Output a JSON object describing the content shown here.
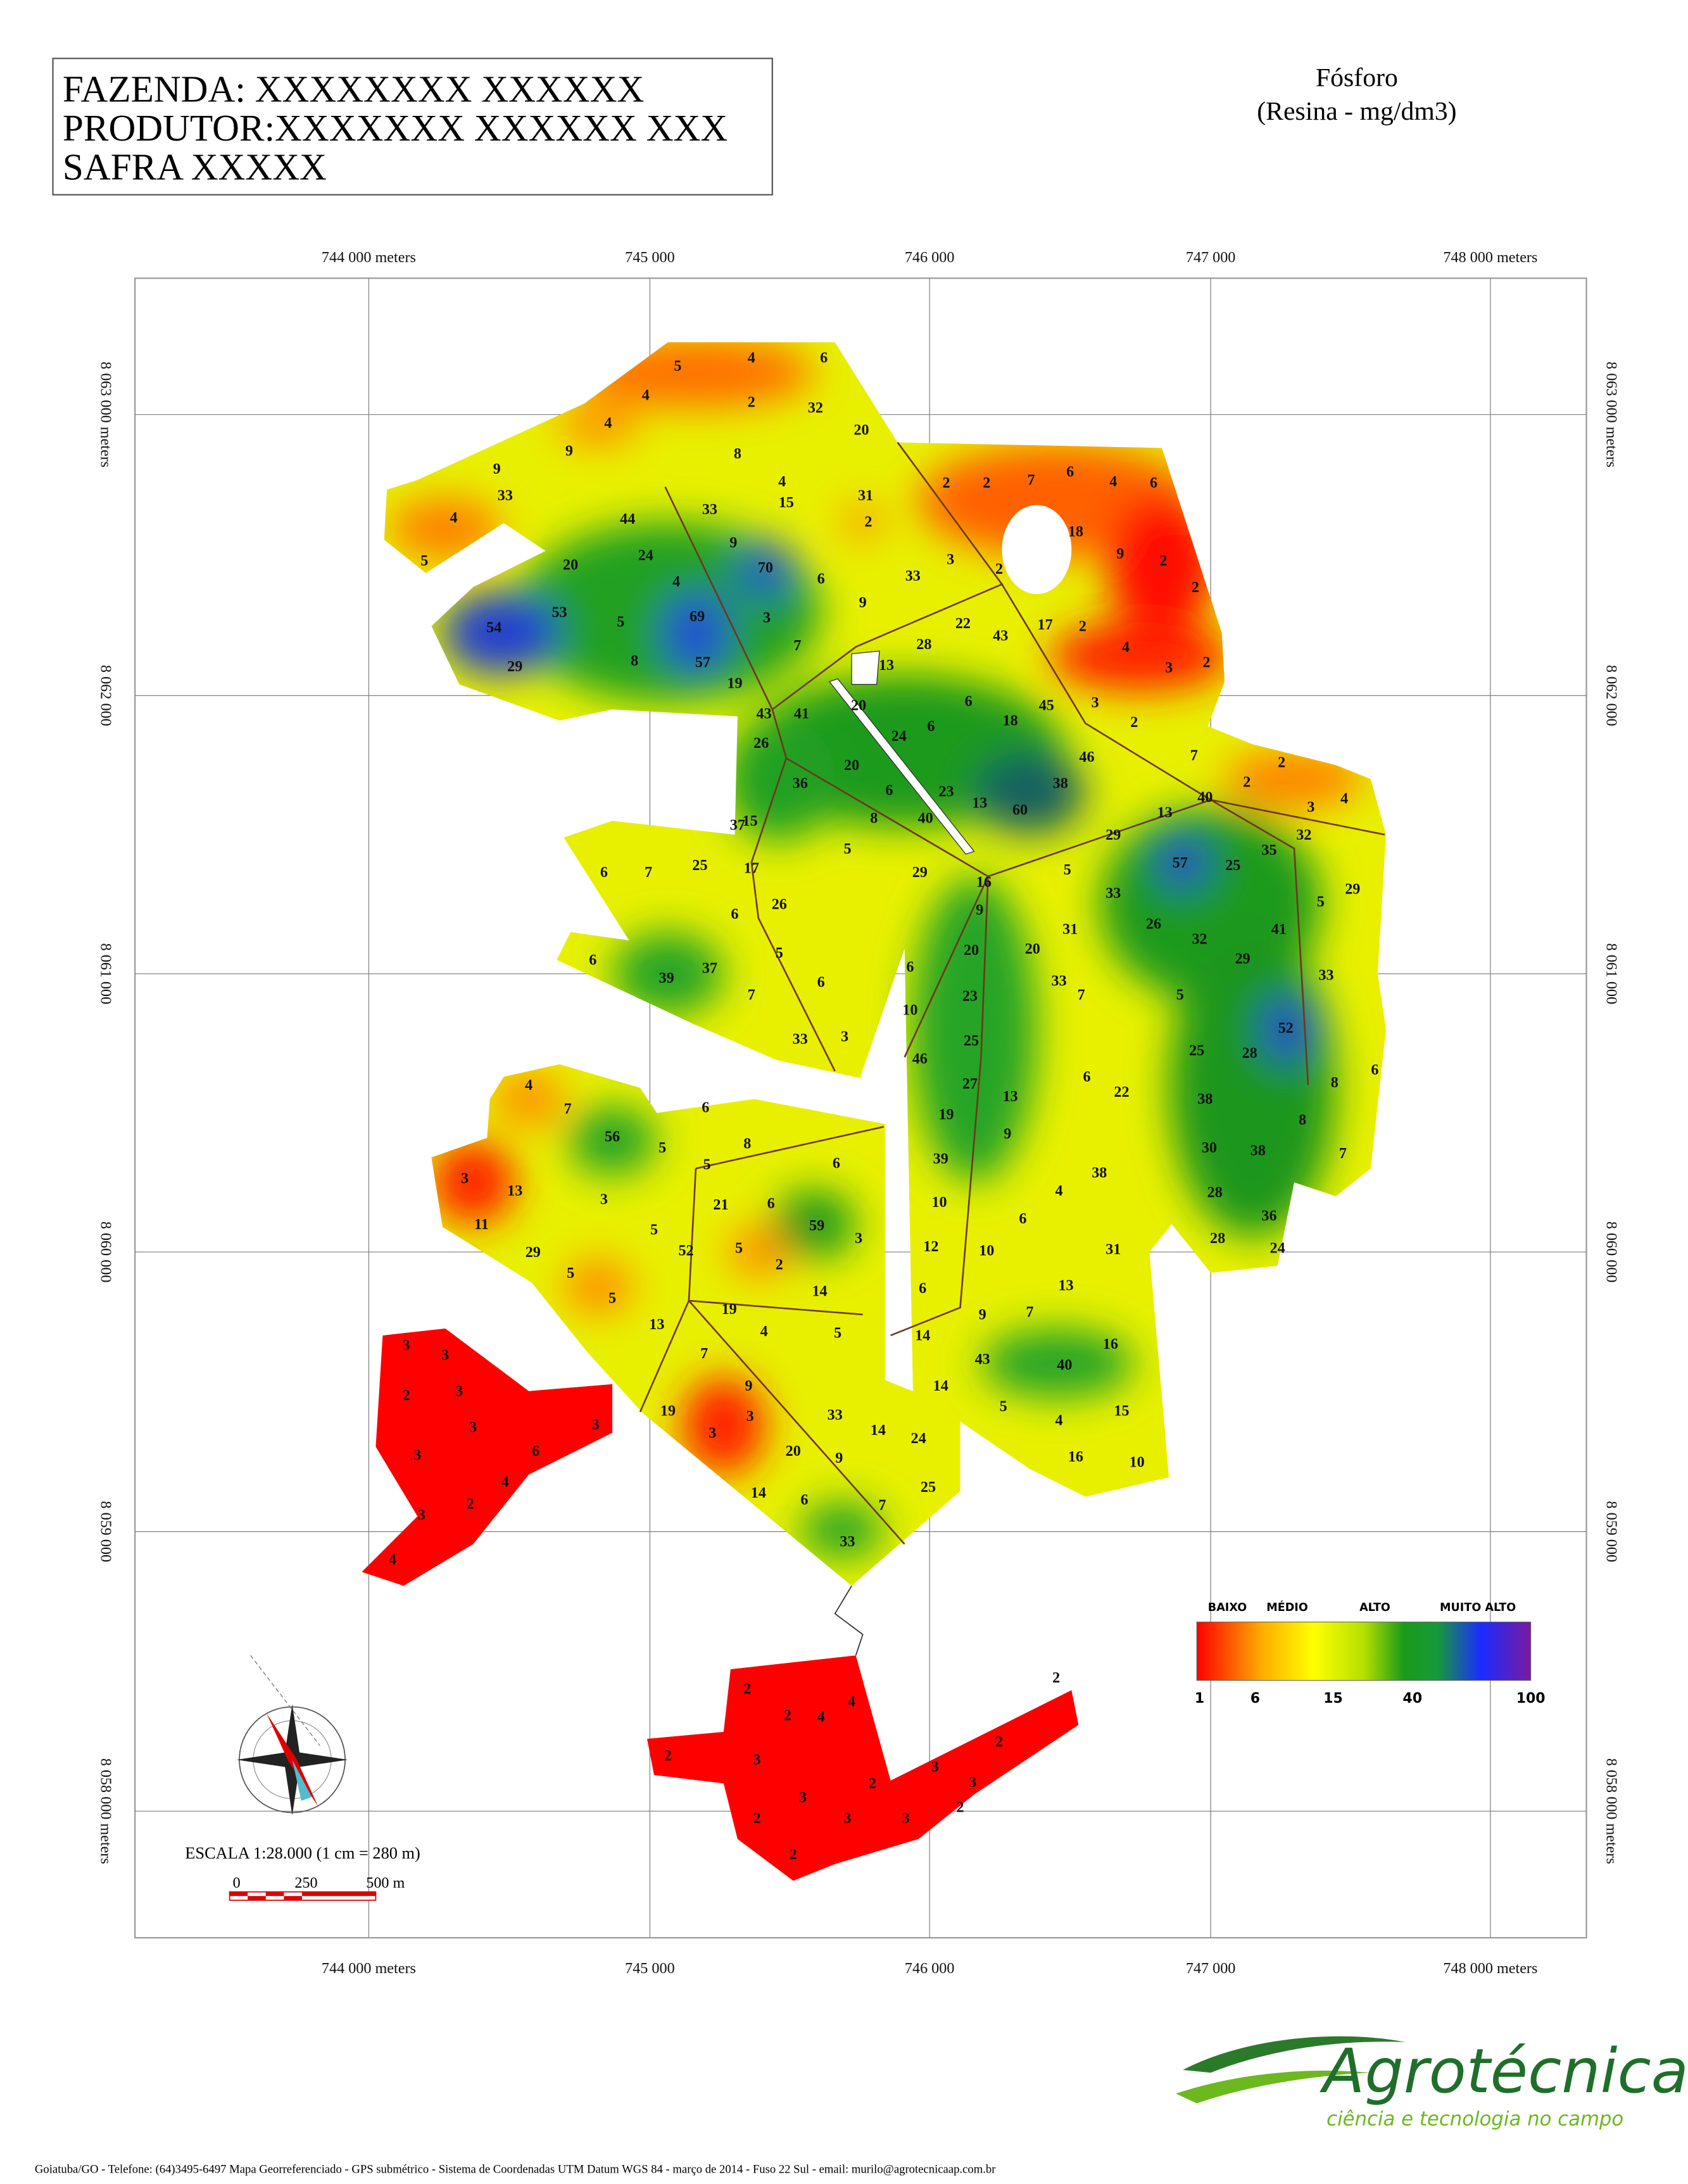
{
  "header": {
    "lines": [
      "FAZENDA: XXXXXXXX XXXXXX",
      "PRODUTOR:XXXXXXX XXXXXX XXX",
      "SAFRA XXXXX"
    ]
  },
  "title": {
    "line1": "Fósforo",
    "line2": "(Resina - mg/dm3)"
  },
  "grid": {
    "top_labels": [
      "744 000 meters",
      "745 000",
      "746 000",
      "747 000",
      "748 000 meters"
    ],
    "bottom_labels": [
      "744 000 meters",
      "745 000",
      "746 000",
      "747 000",
      "748 000 meters"
    ],
    "left_labels": [
      "8 063 000 meters",
      "8 062 000",
      "8 061 000",
      "8 060 000",
      "8 059 000",
      "8 058 000 meters"
    ],
    "right_labels": [
      "8 063 000 meters",
      "8 062 000",
      "8 061 000",
      "8 060 000",
      "8 059 000",
      "8 058 000 meters"
    ]
  },
  "legend": {
    "classes": [
      "BAIXO",
      "MÉDIO",
      "ALTO",
      "MUITO ALTO"
    ],
    "ticks": [
      "1",
      "6",
      "15",
      "40",
      "100"
    ]
  },
  "scale": {
    "text": "ESCALA 1:28.000 (1 cm = 280 m)",
    "bar_labels": [
      "0",
      "250",
      "500 m"
    ]
  },
  "logo": {
    "name": "Agrotécnica",
    "tagline": "ciência e tecnologia no campo"
  },
  "footer": "Goiatuba/GO  -  Telefone:  (64)3495-6497 Mapa Georreferenciado  -  GPS submétrico  -  Sistema de Coordenadas UTM Datum WGS 84  -  março de 2014  -  Fuso 22 Sul - email: murilo@agrotecnicaap.com.br",
  "samples": [
    5,
    4,
    6,
    4,
    2,
    32,
    4,
    20,
    9,
    8,
    9,
    4,
    2,
    2,
    7,
    6,
    4,
    6,
    33,
    33,
    15,
    31,
    4,
    2,
    44,
    18,
    5,
    20,
    24,
    9,
    3,
    9,
    2,
    70,
    2,
    4,
    6,
    33,
    2,
    53,
    9,
    54,
    5,
    69,
    3,
    22,
    43,
    17,
    2,
    29,
    8,
    57,
    7,
    13,
    28,
    4,
    2,
    3,
    19,
    20,
    6,
    18,
    45,
    3,
    41,
    43,
    24,
    6,
    2,
    26,
    20,
    46,
    7,
    2,
    2,
    6,
    23,
    13,
    60,
    38,
    36,
    40,
    3,
    4,
    8,
    40,
    13,
    37,
    15,
    29,
    32,
    5,
    35,
    6,
    7,
    25,
    17,
    29,
    57,
    25,
    16,
    5,
    29,
    26,
    33,
    5,
    6,
    9,
    31,
    26,
    32,
    41,
    20,
    20,
    5,
    6,
    37,
    29,
    6,
    33,
    7,
    39,
    33,
    6,
    7,
    5,
    23,
    10,
    52,
    33,
    3,
    25,
    25,
    28,
    46,
    27,
    6,
    8,
    4,
    7,
    6,
    13,
    6,
    22,
    38,
    19,
    8,
    56,
    5,
    8,
    5,
    6,
    9,
    30,
    38,
    7,
    39,
    3,
    13,
    38,
    4,
    28,
    21,
    6,
    59,
    3,
    10,
    11,
    5,
    3,
    6,
    36,
    52,
    5,
    29,
    12,
    10,
    31,
    28,
    24,
    2,
    5,
    5,
    14,
    6,
    13,
    19,
    9,
    7,
    13,
    4,
    5,
    14,
    3,
    3,
    7,
    16,
    43,
    40,
    2,
    3,
    9,
    14,
    19,
    33,
    14,
    5,
    15,
    3,
    3,
    3,
    3,
    24,
    4,
    3,
    6,
    20,
    9,
    16,
    10,
    4,
    2,
    14,
    6,
    25,
    3,
    7,
    33,
    4,
    2,
    2,
    4,
    4,
    2,
    2,
    2,
    3,
    3,
    3,
    2,
    3,
    2,
    3,
    3,
    2,
    2
  ]
}
